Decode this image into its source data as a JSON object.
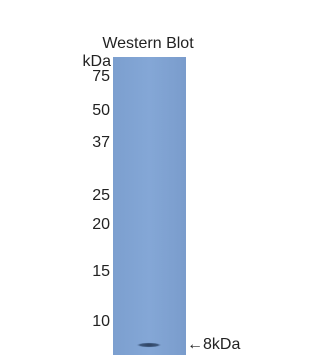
{
  "header": {
    "title": "Western Blot"
  },
  "axis": {
    "unit": "kDa",
    "markers": [
      "75",
      "50",
      "37",
      "25",
      "20",
      "15",
      "10"
    ]
  },
  "annotation": {
    "label": "←8kDa"
  }
}
